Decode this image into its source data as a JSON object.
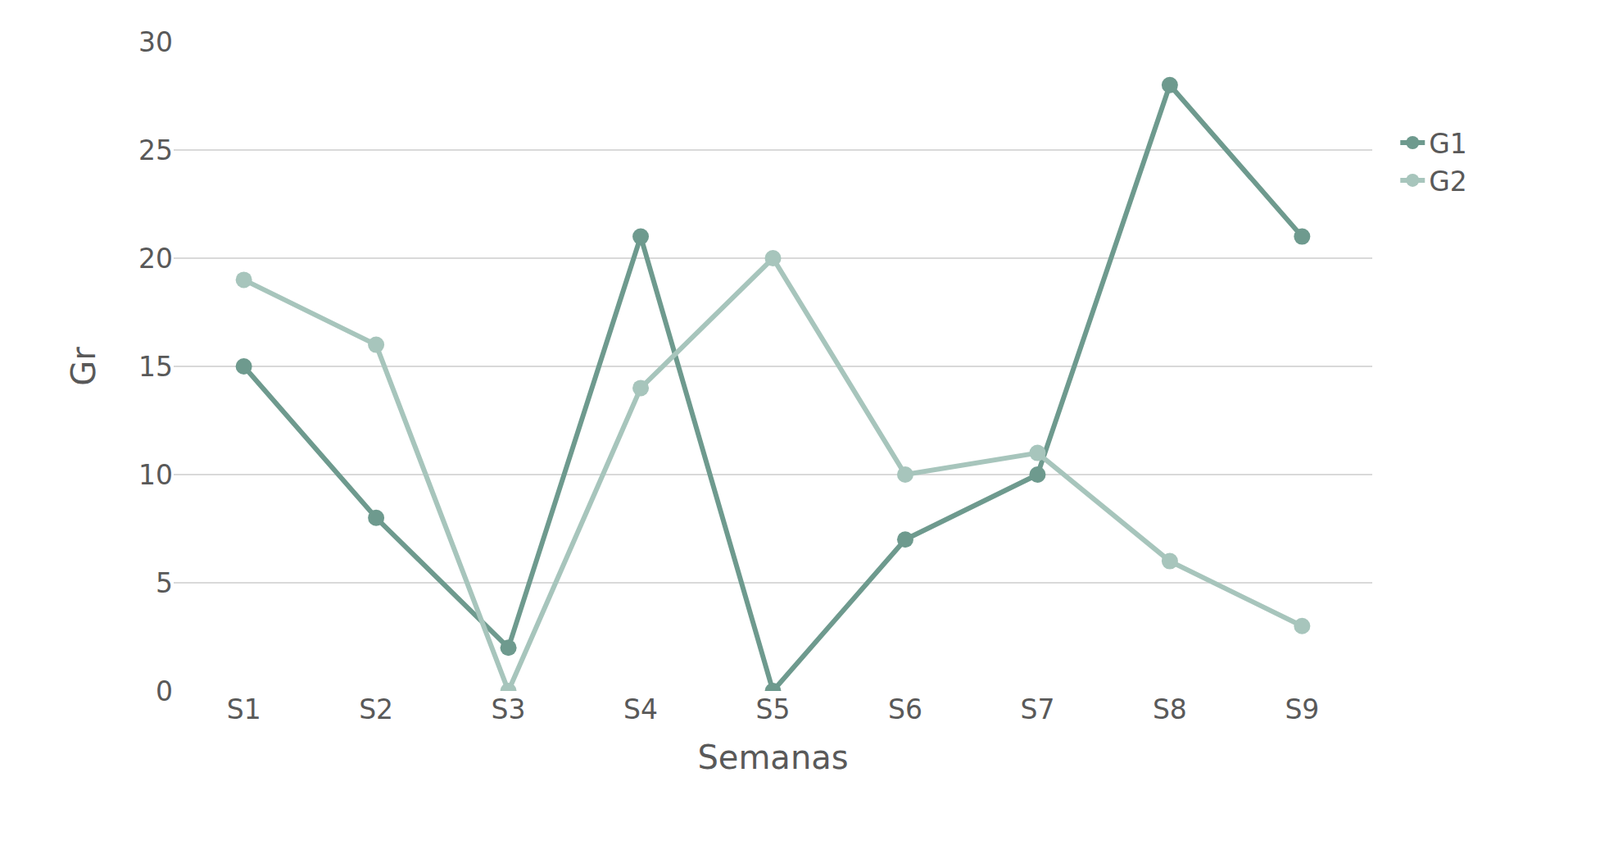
{
  "chart_data": {
    "type": "line",
    "x_label": "Semanas",
    "y_label": "Gr",
    "categories": [
      "S1",
      "S2",
      "S3",
      "S4",
      "S5",
      "S6",
      "S7",
      "S8",
      "S9"
    ],
    "series": [
      {
        "name": "G1",
        "color": "#6e9a8e",
        "values": [
          15,
          8,
          2,
          21,
          0,
          7,
          10,
          28,
          21
        ]
      },
      {
        "name": "G2",
        "color": "#a7c5bc",
        "values": [
          19,
          16,
          0,
          14,
          20,
          10,
          11,
          6,
          3
        ]
      }
    ],
    "ylim": [
      0,
      30
    ],
    "yticks": [
      0,
      5,
      10,
      15,
      20,
      25,
      30
    ],
    "grid": true,
    "legend": "right",
    "marker": "circle",
    "line_style": "solid"
  }
}
